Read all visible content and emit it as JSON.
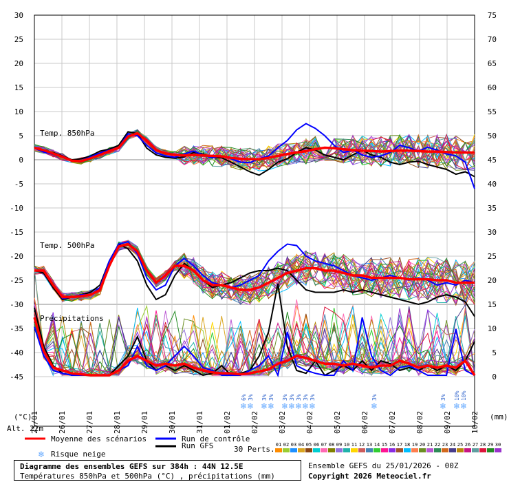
{
  "chart_data": {
    "type": "line",
    "x_dates": [
      "26/01",
      "27/01",
      "28/01",
      "29/01",
      "30/01",
      "31/01",
      "01/02",
      "02/02",
      "03/02",
      "04/02",
      "05/02",
      "06/02",
      "07/02",
      "08/02",
      "09/02",
      "10/02"
    ],
    "first_date": "25/01",
    "left_axis": {
      "ticks": [
        30,
        25,
        20,
        15,
        10,
        5,
        0,
        -5,
        -10,
        -15,
        -20,
        -25,
        -30,
        -35,
        -40,
        -45
      ],
      "unit_label": "(°C)"
    },
    "right_axis": {
      "ticks": [
        75,
        70,
        65,
        60,
        55,
        50,
        45,
        40,
        35,
        30,
        25,
        20,
        15,
        10,
        5,
        0
      ],
      "unit_label": "(mm)"
    },
    "altitude_label": "Alt. 22m",
    "panel_labels": {
      "t850": "Temp. 850hPa",
      "t500": "Temp. 500hPa",
      "precip": "Précipitations"
    },
    "t850_mean": [
      2.5,
      2,
      1.3,
      0.6,
      -0.2,
      -0.3,
      0.3,
      1,
      1.8,
      2.5,
      4.8,
      5.5,
      4,
      2,
      1.3,
      1,
      0.9,
      1,
      0.9,
      0.8,
      0.7,
      0.4,
      0.2,
      0.1,
      0.1,
      0.4,
      0.8,
      1.2,
      1.5,
      1.8,
      2.2,
      2.5,
      2.4,
      2.2,
      2,
      1.9,
      1.8,
      1.7,
      1.8,
      1.9,
      1.9,
      1.8,
      1.7,
      1.7,
      1.6,
      1.5,
      1.5,
      1.5
    ],
    "t850_control": [
      2.4,
      1.6,
      1.2,
      0.5,
      -0.3,
      -0.2,
      0.6,
      1.4,
      2,
      2.6,
      5.4,
      5,
      3,
      1.4,
      0.8,
      0.5,
      1.2,
      1.8,
      1,
      0.4,
      0.8,
      0.2,
      -0.5,
      -0.6,
      0.2,
      0.8,
      2.5,
      4,
      6.2,
      7.5,
      6.5,
      5,
      3,
      1.5,
      2,
      1,
      0.5,
      0.8,
      1.5,
      3,
      2.5,
      1.8,
      2.6,
      2,
      1.2,
      0.8,
      -0.5,
      -6
    ],
    "t850_gfs": [
      2.6,
      1.8,
      1.5,
      0.8,
      0,
      0.2,
      0.8,
      1.8,
      2.2,
      3,
      5.8,
      5.4,
      2.4,
      1,
      0.5,
      0.3,
      0.6,
      1.5,
      1.2,
      0.5,
      0.4,
      -0.5,
      -1.5,
      -2.5,
      -3.2,
      -2,
      -0.5,
      0.2,
      1.5,
      2.5,
      2,
      1,
      0.5,
      0,
      1,
      2,
      1,
      0.5,
      -0.5,
      -1,
      -0.5,
      -0.3,
      -1,
      -1.5,
      -2,
      -3,
      -2.5,
      -3.5
    ],
    "t500_mean": [
      -23,
      -23,
      -26,
      -28.5,
      -28.5,
      -28.3,
      -28,
      -27,
      -22,
      -18,
      -17.5,
      -19,
      -23,
      -25.5,
      -24,
      -22,
      -22,
      -23,
      -25,
      -26,
      -26,
      -26.5,
      -27,
      -27,
      -26.5,
      -25.5,
      -24.5,
      -23.5,
      -23,
      -22.5,
      -22.5,
      -23,
      -23,
      -23.5,
      -24,
      -24,
      -24.5,
      -24.5,
      -24.5,
      -24.5,
      -24.8,
      -24.8,
      -24.8,
      -25,
      -25,
      -25.5,
      -25.5,
      -25.5
    ],
    "t500_control": [
      -23,
      -23,
      -26,
      -28.8,
      -28.5,
      -28,
      -28,
      -26.5,
      -21,
      -17.5,
      -17,
      -19.5,
      -24.5,
      -27,
      -26,
      -22,
      -20.5,
      -22,
      -24,
      -25.5,
      -26,
      -26.5,
      -26,
      -25,
      -24,
      -21,
      -19,
      -17.5,
      -17.8,
      -20,
      -21,
      -21.5,
      -22,
      -23,
      -24,
      -24.5,
      -25,
      -24.5,
      -24,
      -24.5,
      -25,
      -24.5,
      -25,
      -26,
      -25.5,
      -26,
      -25,
      -25.5
    ],
    "t500_gfs": [
      -23,
      -23.5,
      -26.5,
      -29,
      -28.5,
      -28,
      -27.5,
      -26,
      -21,
      -17.5,
      -18.5,
      -21,
      -26,
      -29,
      -28,
      -24,
      -21.5,
      -23,
      -25,
      -26.5,
      -26,
      -25.5,
      -24.5,
      -23.5,
      -23,
      -23,
      -22.5,
      -23,
      -25,
      -27,
      -27.5,
      -27.5,
      -27.5,
      -27,
      -27.5,
      -27,
      -27.5,
      -28,
      -28.5,
      -29,
      -29.5,
      -30,
      -29.5,
      -28.5,
      -28,
      -28.5,
      -29.5,
      -32.5
    ],
    "precip_mean": [
      6,
      2.5,
      0.8,
      0.5,
      0.2,
      0.1,
      0,
      0,
      0,
      0.5,
      1.5,
      2,
      1.5,
      1,
      1.2,
      1,
      1.2,
      0.8,
      0.5,
      0.3,
      0.2,
      0.2,
      0.1,
      0.2,
      0.4,
      0.6,
      1.2,
      1.5,
      2,
      1.8,
      1.5,
      1.2,
      1.2,
      1,
      1.2,
      1,
      0.8,
      1,
      1,
      1.5,
      1.2,
      0.8,
      1,
      0.8,
      1,
      0.8,
      1.5,
      0
    ],
    "precip_control": [
      5,
      2,
      0.5,
      0.2,
      0,
      0,
      0,
      0,
      0,
      0.5,
      1,
      3,
      1,
      0.5,
      1,
      2,
      3,
      2,
      0.8,
      0.5,
      0,
      0,
      0,
      0.5,
      1,
      2,
      0,
      4.5,
      1,
      0.5,
      0.2,
      0,
      0,
      1.5,
      0.5,
      6,
      2,
      0.5,
      0,
      0.8,
      1,
      0.5,
      0,
      0,
      0,
      4.8,
      0.5,
      0
    ],
    "precip_gfs": [
      7,
      3,
      1,
      0.2,
      0,
      0,
      0,
      0,
      0,
      1,
      2,
      4,
      1.5,
      0.5,
      1,
      0.5,
      1,
      0.5,
      0,
      0.2,
      1,
      0,
      0.2,
      0.5,
      2,
      4.5,
      9.5,
      3,
      0.5,
      0.2,
      1.5,
      0,
      0.5,
      1,
      0.5,
      1.5,
      0.5,
      1.5,
      1.2,
      0.5,
      0.8,
      0.5,
      1,
      0.5,
      1,
      0.5,
      1.5,
      3.5
    ],
    "snow_risk": [
      {
        "date_index": 7.6,
        "pct": "6%"
      },
      {
        "date_index": 7.85,
        "pct": "3%"
      },
      {
        "date_index": 8.35,
        "pct": "3%"
      },
      {
        "date_index": 8.6,
        "pct": "3%"
      },
      {
        "date_index": 9.1,
        "pct": "3%"
      },
      {
        "date_index": 9.35,
        "pct": "3%"
      },
      {
        "date_index": 9.6,
        "pct": "3%"
      },
      {
        "date_index": 9.85,
        "pct": "3%"
      },
      {
        "date_index": 10.1,
        "pct": "3%"
      },
      {
        "date_index": 12.35,
        "pct": "3%"
      },
      {
        "date_index": 14.85,
        "pct": "3%"
      },
      {
        "date_index": 15.35,
        "pct": "10%"
      },
      {
        "date_index": 15.6,
        "pct": "10%"
      }
    ],
    "legend": {
      "mean": "Moyenne des scénarios",
      "control": "Run de contrôle",
      "gfs": "Run GFS",
      "snow": "Risque neige",
      "perts": "30 Perts.",
      "member_ids": [
        "01",
        "02",
        "03",
        "04",
        "05",
        "06",
        "07",
        "08",
        "09",
        "10",
        "11",
        "12",
        "13",
        "14",
        "15",
        "16",
        "17",
        "18",
        "19",
        "20",
        "21",
        "22",
        "23",
        "24",
        "25",
        "26",
        "27",
        "28",
        "29",
        "30"
      ]
    }
  },
  "colors": {
    "mean": "#ff0000",
    "control": "#0000ff",
    "gfs": "#000000",
    "snow": "#66aaff",
    "grid": "#c8c8c8",
    "zero_line": "#888888",
    "members": [
      "#ff8c00",
      "#9acd32",
      "#1e90ff",
      "#daa520",
      "#8b4513",
      "#00ced1",
      "#ff69b4",
      "#808000",
      "#9370db",
      "#20b2aa",
      "#ffd700",
      "#cd5c5c",
      "#4682b4",
      "#32cd32",
      "#ff1493",
      "#8a2be2",
      "#a0522d",
      "#00bfff",
      "#ff7f50",
      "#6b8e23",
      "#ba55d3",
      "#2e8b57",
      "#d2691e",
      "#483d8b",
      "#b8860b",
      "#c71585",
      "#5f9ea0",
      "#dc143c",
      "#228b22",
      "#9932cc"
    ]
  },
  "footer": {
    "title": "Diagramme des ensembles GEFS sur 384h : 44N 12.5E",
    "subtitle": "Températures 850hPa et 500hPa (°C) , précipitations (mm)",
    "run_info": "Ensemble GEFS du 25/01/2026 - 00Z",
    "copyright": "Copyright 2026 Meteociel.fr"
  }
}
